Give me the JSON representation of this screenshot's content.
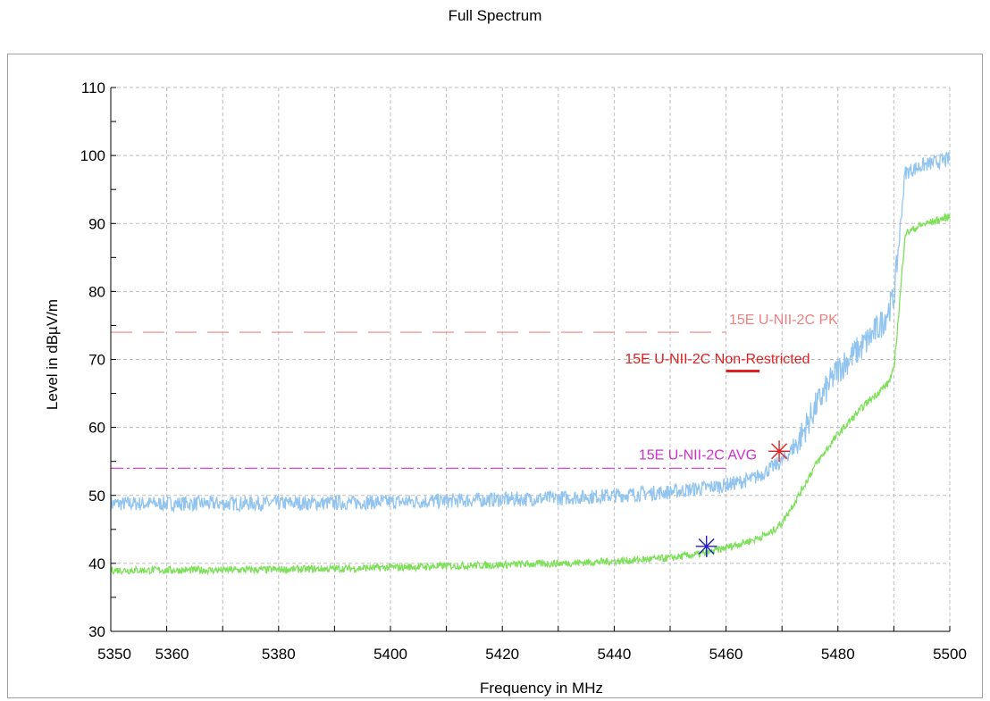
{
  "chart_data": {
    "type": "line",
    "title": "Full Spectrum",
    "xlabel": "Frequency in MHz",
    "ylabel": "Level in dBµV/m",
    "xlim": [
      5350,
      5500
    ],
    "ylim": [
      30,
      110
    ],
    "xticks": [
      5350,
      5360,
      5380,
      5400,
      5420,
      5440,
      5460,
      5480,
      5500
    ],
    "yticks": [
      30,
      40,
      50,
      60,
      70,
      80,
      90,
      100,
      110
    ],
    "grid": true,
    "series": [
      {
        "color": "#92c4f0",
        "x": [
          5350,
          5370,
          5390,
          5410,
          5430,
          5440,
          5450,
          5460,
          5465,
          5470,
          5473,
          5476,
          5480,
          5485,
          5488,
          5490,
          5491,
          5492,
          5495,
          5500
        ],
        "y": [
          48.8,
          48.8,
          48.9,
          49.2,
          49.6,
          50.0,
          50.5,
          51.5,
          52.5,
          55.0,
          58.0,
          63.0,
          68.5,
          72.5,
          75.5,
          79.0,
          88.0,
          97.5,
          98.5,
          99.5
        ]
      },
      {
        "color": "#7ee05a",
        "x": [
          5350,
          5370,
          5390,
          5410,
          5430,
          5440,
          5450,
          5456.5,
          5460,
          5465,
          5468,
          5470,
          5473,
          5476,
          5480,
          5485,
          5489,
          5490,
          5491,
          5492,
          5495,
          5500
        ],
        "y": [
          39.0,
          39.0,
          39.2,
          39.6,
          40.0,
          40.3,
          40.8,
          41.5,
          42.3,
          43.5,
          44.5,
          46.0,
          50.0,
          54.5,
          59.0,
          63.5,
          66.5,
          68.5,
          78.0,
          88.5,
          89.8,
          91.0
        ]
      }
    ],
    "limit_lines": [
      {
        "label": "15E U-NII-2C PK",
        "y": 74,
        "x_range": [
          5350,
          5460
        ],
        "color": "#f08080",
        "style": "dashed"
      },
      {
        "label": "15E U-NII-2C Non-Restricted",
        "y": 68.3,
        "x_range": [
          5460,
          5466
        ],
        "color": "#e02020",
        "style": "solid"
      },
      {
        "label": "15E U-NII-2C AVG",
        "y": 54,
        "x_range": [
          5350,
          5460
        ],
        "color": "#d030d0",
        "style": "dashdot"
      }
    ],
    "markers": [
      {
        "x": 5469.5,
        "y": 56.5,
        "color": "#e02020",
        "symbol": "asterisk"
      },
      {
        "x": 5456.5,
        "y": 42.5,
        "color": "#2020c0",
        "symbol": "asterisk"
      }
    ]
  }
}
